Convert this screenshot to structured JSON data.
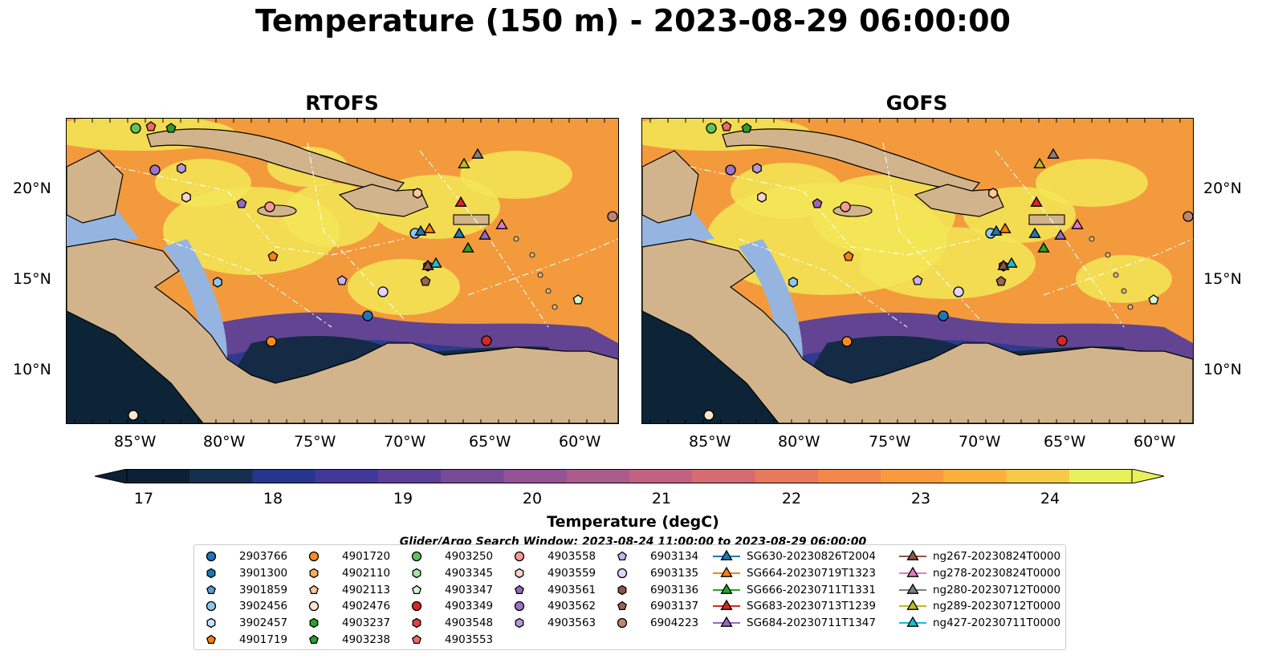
{
  "title": "Temperature (150 m) - 2023-08-29 06:00:00",
  "panels": {
    "rtofs": {
      "title": "RTOFS"
    },
    "gofs": {
      "title": "GOFS"
    }
  },
  "axes": {
    "lon_ticks": [
      "85°W",
      "80°W",
      "75°W",
      "70°W",
      "65°W",
      "60°W"
    ],
    "lat_ticks": [
      "20°N",
      "15°N",
      "10°N"
    ]
  },
  "colorbar": {
    "label": "Temperature (degC)",
    "ticks": [
      "17",
      "18",
      "19",
      "20",
      "21",
      "22",
      "23",
      "24"
    ],
    "colors": [
      "#0c2135",
      "#15304f",
      "#25378c",
      "#41399a",
      "#5c3f97",
      "#774a95",
      "#925495",
      "#ac5c8c",
      "#c36183",
      "#d66b73",
      "#e8795f",
      "#f4884a",
      "#f99a3f",
      "#fbb03b",
      "#f6c946",
      "#e8f159"
    ]
  },
  "search_window": "Glider/Argo Search Window: 2023-08-24 11:00:00 to 2023-08-29 06:00:00",
  "legend": {
    "col1": [
      {
        "label": "2903766",
        "color": "#1f77b4",
        "marker": "circle"
      },
      {
        "label": "3901300",
        "color": "#1f77b4",
        "marker": "hexagon"
      },
      {
        "label": "3901859",
        "color": "#5a9bd4",
        "marker": "pentagon"
      },
      {
        "label": "3902456",
        "color": "#8fc5f0",
        "marker": "circle"
      },
      {
        "label": "3902457",
        "color": "#c6e4f7",
        "marker": "hexagon"
      },
      {
        "label": "4901719",
        "color": "#ff7f0e",
        "marker": "pentagon"
      }
    ],
    "col2": [
      {
        "label": "4901720",
        "color": "#ff8c1a",
        "marker": "circle"
      },
      {
        "label": "4902110",
        "color": "#ffac5c",
        "marker": "hexagon"
      },
      {
        "label": "4902113",
        "color": "#ffc896",
        "marker": "pentagon"
      },
      {
        "label": "4902476",
        "color": "#ffe6cc",
        "marker": "circle"
      },
      {
        "label": "4903237",
        "color": "#2ca02c",
        "marker": "hexagon"
      },
      {
        "label": "4903238",
        "color": "#2ca02c",
        "marker": "pentagon"
      }
    ],
    "col3": [
      {
        "label": "4903250",
        "color": "#5ec45e",
        "marker": "circle"
      },
      {
        "label": "4903345",
        "color": "#a6e3a6",
        "marker": "hexagon"
      },
      {
        "label": "4903347",
        "color": "#d5f5d0",
        "marker": "pentagon"
      },
      {
        "label": "4903349",
        "color": "#d62728",
        "marker": "circle"
      },
      {
        "label": "4903548",
        "color": "#e0413f",
        "marker": "hexagon"
      },
      {
        "label": "4903553",
        "color": "#f06a6a",
        "marker": "pentagon"
      }
    ],
    "col4": [
      {
        "label": "4903558",
        "color": "#f59a98",
        "marker": "circle"
      },
      {
        "label": "4903559",
        "color": "#fbd2d0",
        "marker": "hexagon"
      },
      {
        "label": "4903561",
        "color": "#9467bd",
        "marker": "pentagon"
      },
      {
        "label": "4903562",
        "color": "#9d74c6",
        "marker": "circle"
      },
      {
        "label": "4903563",
        "color": "#b597d8",
        "marker": "hexagon"
      }
    ],
    "col5": [
      {
        "label": "6903134",
        "color": "#cbb3ea",
        "marker": "pentagon"
      },
      {
        "label": "6903135",
        "color": "#e3d3f7",
        "marker": "circle"
      },
      {
        "label": "6903136",
        "color": "#8c564b",
        "marker": "hexagon"
      },
      {
        "label": "6903137",
        "color": "#9c6455",
        "marker": "pentagon"
      },
      {
        "label": "6904223",
        "color": "#c08572",
        "marker": "circle"
      }
    ],
    "col6": [
      {
        "label": "SG630-20230826T2004",
        "color": "#1f77b4",
        "marker": "triangle"
      },
      {
        "label": "SG664-20230719T1323",
        "color": "#ff7f0e",
        "marker": "triangle"
      },
      {
        "label": "SG666-20230711T1331",
        "color": "#2ca02c",
        "marker": "triangle"
      },
      {
        "label": "SG683-20230713T1239",
        "color": "#d62728",
        "marker": "triangle"
      },
      {
        "label": "SG684-20230711T1347",
        "color": "#9467bd",
        "marker": "triangle"
      }
    ],
    "col7": [
      {
        "label": "ng267-20230824T0000",
        "color": "#8c564b",
        "marker": "triangle"
      },
      {
        "label": "ng278-20230824T0000",
        "color": "#e377c2",
        "marker": "triangle"
      },
      {
        "label": "ng280-20230712T0000",
        "color": "#7f7f7f",
        "marker": "triangle"
      },
      {
        "label": "ng289-20230712T0000",
        "color": "#bcbd22",
        "marker": "triangle"
      },
      {
        "label": "ng427-20230711T0000",
        "color": "#17becf",
        "marker": "triangle"
      }
    ]
  }
}
